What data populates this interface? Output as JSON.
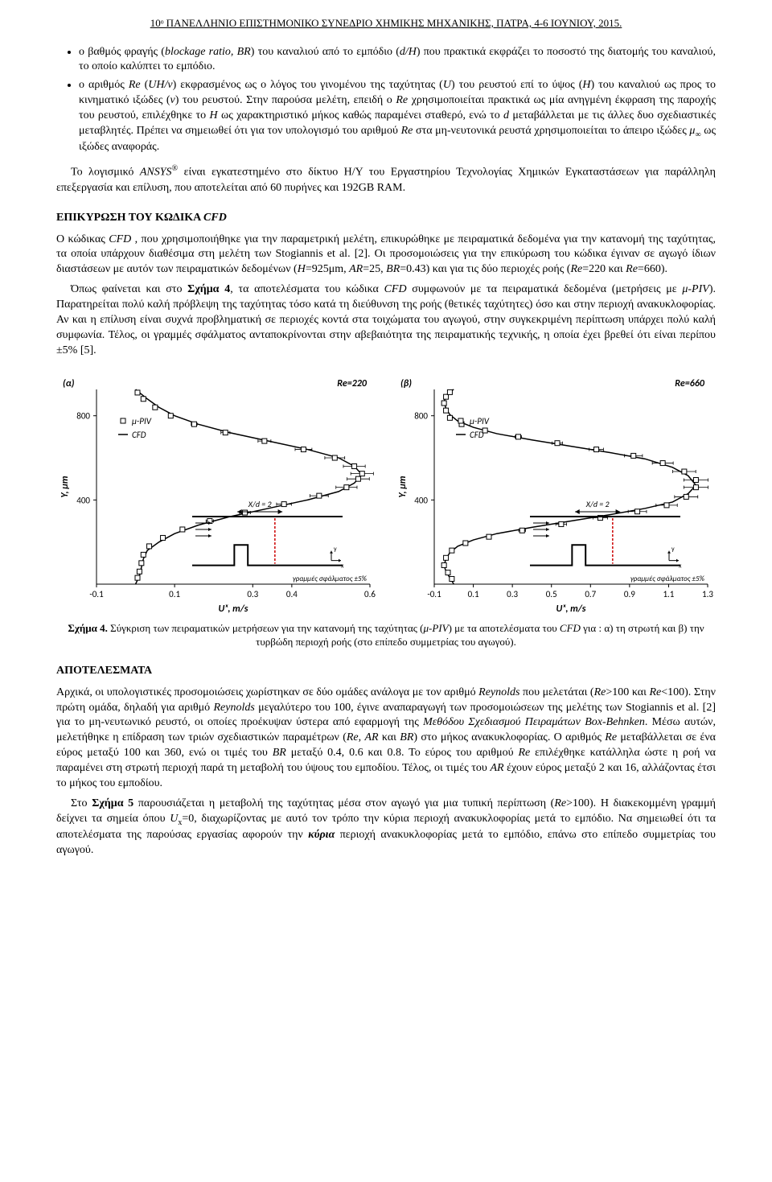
{
  "header": "10ᵒ ΠΑΝΕΛΛΗΝΙΟ ΕΠΙΣΤΗΜΟΝΙΚΟ ΣΥΝΕΔΡΙΟ ΧΗΜΙΚΗΣ ΜΗΧΑΝΙΚΗΣ, ΠΑΤΡΑ, 4-6 ΙΟΥΝΙΟΥ, 2015.",
  "bullet1_prefix": "ο βαθμός φραγής (",
  "bullet1_ital1": "blockage ratio, BR",
  "bullet1_mid1": ") του καναλιού από το εμπόδιο (",
  "bullet1_ital2": "d/H",
  "bullet1_suffix": ") που πρακτικά εκφράζει το ποσοστό της διατομής του καναλιού, το οποίο καλύπτει το εμπόδιο.",
  "bullet2_prefix": "ο αριθμός ",
  "bullet2_ital1": "Re",
  "bullet2_mid1": " (",
  "bullet2_ital2": "UH/ν",
  "bullet2_mid2": ") εκφρασμένος ως ο λόγος του γινομένου της ταχύτητας (",
  "bullet2_ital3": "U",
  "bullet2_mid3": ") του ρευστού επί το ύψος (",
  "bullet2_ital4": "H",
  "bullet2_mid4": ") του καναλιού ως προς το κινηματικό ιξώδες (",
  "bullet2_ital5": "ν",
  "bullet2_mid5": ") του ρευστού. Στην παρούσα μελέτη, επειδή ο ",
  "bullet2_ital6": "Re",
  "bullet2_mid6": " χρησιμοποιείται πρακτικά ως μία ανηγμένη έκφραση της παροχής του ρευστού, επιλέχθηκε το ",
  "bullet2_ital7": "H",
  "bullet2_mid7": " ως χαρακτηριστικό μήκος καθώς παραμένει σταθερό, ενώ το ",
  "bullet2_ital8": "d",
  "bullet2_mid8": " μεταβάλλεται με τις άλλες δυο σχεδιαστικές μεταβλητές. Πρέπει να σημειωθεί ότι για τον υπολογισμό του αριθμού ",
  "bullet2_ital9": "Re",
  "bullet2_mid9": " στα μη-νευτονικά ρευστά χρησιμοποιείται το άπειρο ιξώδες ",
  "bullet2_ital10": "μ",
  "bullet2_sub1": "∞",
  "bullet2_suffix": " ως ιξώδες αναφοράς.",
  "para2_prefix": "Το λογισμικό ",
  "para2_ital1": "ANSYS",
  "para2_reg": "®",
  "para2_suffix": " είναι εγκατεστημένο στο δίκτυο Η/Υ του Εργαστηρίου Τεχνολογίας Χημικών Εγκαταστάσεων για παράλληλη επεξεργασία και επίλυση, που αποτελείται από 60 πυρήνες και 192GB RAM.",
  "section1_title_a": "ΕΠΙΚΥΡΩΣΗ ΤΟΥ ΚΩΔΙΚΑ ",
  "section1_title_b": "CFD",
  "para3_a": "Ο κώδικας ",
  "para3_i1": "CFD ",
  "para3_b": ", που χρησιμοποιήθηκε για την παραμετρική μελέτη, επικυρώθηκε με πειραματικά δεδομένα για την κατανομή της ταχύτητας, τα οποία υπάρχουν διαθέσιμα στη μελέτη των Stogiannis et al. [2]. Οι προσομοιώσεις για την επικύρωση του κώδικα έγιναν σε αγωγό ίδιων διαστάσεων με αυτόν των πειραματικών δεδομένων (",
  "para3_i2": "H",
  "para3_c": "=925μm, ",
  "para3_i3": "AR",
  "para3_d": "=25, ",
  "para3_i4": "BR",
  "para3_e": "=0.43) και για τις δύο περιοχές ροής (",
  "para3_i5": "Re",
  "para3_f": "=220 και ",
  "para3_i6": "Re",
  "para3_g": "=660).",
  "para4_a": "Όπως φαίνεται και στο ",
  "para4_b": "Σχήμα 4",
  "para4_c": ", τα αποτελέσματα του κώδικα ",
  "para4_i1": "CFD",
  "para4_d": " συμφωνούν με τα πειραματικά δεδομένα (μετρήσεις με ",
  "para4_i2": "μ-PIV",
  "para4_e": "). Παρατηρείται πολύ καλή πρόβλεψη της ταχύτητας τόσο κατά τη διεύθυνση της ροής (θετικές ταχύτητες) όσο και στην περιοχή ανακυκλοφορίας. Αν και η επίλυση είναι συχνά προβληματική σε περιοχές κοντά στα τοιχώματα του αγωγού, στην συγκεκριμένη περίπτωση υπάρχει πολύ καλή συμφωνία. Τέλος, οι γραμμές σφάλματος ανταποκρίνονται στην αβεβαιότητα της πειραματικής τεχνικής, η οποία έχει βρεθεί ότι είναι περίπου ±5% [5].",
  "fig4_caption_a": "Σχήμα 4.",
  "fig4_caption_b": " Σύγκριση των πειραματικών μετρήσεων για την κατανομή της ταχύτητας (",
  "fig4_caption_i1": "μ-PIV",
  "fig4_caption_c": ") με τα αποτελέσματα του ",
  "fig4_caption_i2": "CFD",
  "fig4_caption_d": " για : α) τη στρωτή και β) την τυρβώδη περιοχή ροής (στο επίπεδο συμμετρίας του αγωγού).",
  "section2_title": "ΑΠΟΤΕΛΕΣΜΑΤΑ",
  "para5_a": "Αρχικά, οι υπολογιστικές προσομοιώσεις χωρίστηκαν σε δύο ομάδες ανάλογα με τον αριθμό ",
  "para5_i1": "Reynolds",
  "para5_b": " που μελετάται (",
  "para5_i2": "Re",
  "para5_c": ">100 και ",
  "para5_i3": "Re",
  "para5_d": "<100). Στην πρώτη ομάδα, δηλαδή για αριθμό ",
  "para5_i4": "Reynolds",
  "para5_e": " μεγαλύτερο του 100, έγινε αναπαραγωγή των προσομοιώσεων της μελέτης των Stogiannis et al. [2] για το μη-νευτωνικό ρευστό, οι οποίες προέκυψαν ύστερα από εφαρμογή της ",
  "para5_i5": "Μεθόδου Σχεδιασμού Πειραμάτων Box-Behnken",
  "para5_f": ". Μέσω αυτών, μελετήθηκε η επίδραση των τριών σχεδιαστικών παραμέτρων (",
  "para5_i6": "Re",
  "para5_g": ", ",
  "para5_i7": "AR",
  "para5_h": " και ",
  "para5_i8": "BR",
  "para5_i": ") στο μήκος ανακυκλοφορίας. Ο αριθμός ",
  "para5_i9": "Re",
  "para5_j": " μεταβάλλεται σε ένα εύρος μεταξύ 100 και 360, ενώ οι τιμές του ",
  "para5_i10": "BR",
  "para5_k": " μεταξύ 0.4, 0.6 και 0.8. Το εύρος του αριθμού ",
  "para5_i11": "Re",
  "para5_l": " επιλέχθηκε κατάλληλα ώστε η ροή να παραμένει στη στρωτή περιοχή παρά τη μεταβολή του ύψους του εμποδίου. Τέλος, οι τιμές του ",
  "para5_i12": "AR",
  "para5_m": " έχουν εύρος μεταξύ 2 και 16, αλλάζοντας έτσι το μήκος του εμποδίου.",
  "para6_a": "Στο ",
  "para6_b": "Σχήμα 5",
  "para6_c": " παρουσιάζεται η μεταβολή της ταχύτητας μέσα στον αγωγό για μια τυπική περίπτωση (",
  "para6_i1": "Re",
  "para6_d": ">100). Η διακεκομμένη γραμμή δείχνει τα σημεία όπου ",
  "para6_i2": "U",
  "para6_sub1": "x",
  "para6_e": "=0, διαχωρίζοντας με αυτό τον τρόπο την κύρια περιοχή ανακυκλοφορίας μετά το εμπόδιο. Να σημειωθεί ότι τα αποτελέσματα της παρούσας εργασίας αφορούν την ",
  "para6_b2": "κύρια",
  "para6_f": " περιοχή ανακυκλοφορίας μετά το εμπόδιο, επάνω στο επίπεδο συμμετρίας του αγωγού.",
  "chartA": {
    "type": "line+scatter",
    "panel_label": "(α)",
    "title": "Re=220",
    "xlabel": "Uₓ, m/s",
    "ylabel": "Y, μm",
    "xlim": [
      -0.1,
      0.6
    ],
    "ylim": [
      0,
      925
    ],
    "xticks": [
      -0.1,
      0.1,
      0.3,
      0.4,
      0.6
    ],
    "yticks": [
      400,
      800
    ],
    "legend_piv": "μ-PIV",
    "legend_cfd": "CFD",
    "legend_marker": "square",
    "inset_label": "X/d = 2",
    "errorbar_label": "γραμμές σφάλματος ±5%",
    "line_color": "#000000",
    "marker_color": "#ffffff",
    "marker_stroke": "#000000",
    "background": "#ffffff",
    "font_family": "Calibri, Arial, sans-serif",
    "cfd_curve": [
      [
        0,
        0
      ],
      [
        0.01,
        40
      ],
      [
        0.015,
        80
      ],
      [
        0.02,
        120
      ],
      [
        0.03,
        160
      ],
      [
        0.06,
        200
      ],
      [
        0.1,
        240
      ],
      [
        0.16,
        280
      ],
      [
        0.24,
        320
      ],
      [
        0.34,
        360
      ],
      [
        0.44,
        400
      ],
      [
        0.52,
        440
      ],
      [
        0.56,
        480
      ],
      [
        0.58,
        520
      ],
      [
        0.56,
        560
      ],
      [
        0.52,
        600
      ],
      [
        0.44,
        640
      ],
      [
        0.34,
        680
      ],
      [
        0.24,
        720
      ],
      [
        0.16,
        760
      ],
      [
        0.1,
        800
      ],
      [
        0.06,
        840
      ],
      [
        0.03,
        880
      ],
      [
        0.01,
        910
      ],
      [
        0,
        925
      ]
    ],
    "piv_points": [
      [
        0.005,
        30
      ],
      [
        0.01,
        60
      ],
      [
        0.015,
        100
      ],
      [
        0.02,
        140
      ],
      [
        0.035,
        180
      ],
      [
        0.07,
        220
      ],
      [
        0.12,
        260
      ],
      [
        0.19,
        300
      ],
      [
        0.28,
        340
      ],
      [
        0.38,
        380
      ],
      [
        0.47,
        420
      ],
      [
        0.54,
        460
      ],
      [
        0.57,
        500
      ],
      [
        0.58,
        525
      ],
      [
        0.56,
        560
      ],
      [
        0.51,
        600
      ],
      [
        0.43,
        640
      ],
      [
        0.33,
        680
      ],
      [
        0.23,
        720
      ],
      [
        0.15,
        760
      ],
      [
        0.09,
        800
      ],
      [
        0.05,
        840
      ],
      [
        0.02,
        880
      ],
      [
        0.005,
        910
      ]
    ],
    "error_pct": 5
  },
  "chartB": {
    "type": "line+scatter",
    "panel_label": "(β)",
    "title": "Re=660",
    "xlabel": "Uₓ, m/s",
    "ylabel": "Y, μm",
    "xlim": [
      -0.1,
      1.3
    ],
    "ylim": [
      0,
      925
    ],
    "xticks": [
      -0.1,
      0.1,
      0.3,
      0.5,
      0.7,
      0.9,
      1.1,
      1.3
    ],
    "yticks": [
      400,
      800
    ],
    "legend_piv": "μ-PIV",
    "legend_cfd": "CFD",
    "legend_marker": "square",
    "inset_label": "X/d = 2",
    "errorbar_label": "γραμμές σφάλματος ±5%",
    "line_color": "#000000",
    "marker_color": "#ffffff",
    "marker_stroke": "#000000",
    "background": "#ffffff",
    "font_family": "Calibri, Arial, sans-serif",
    "cfd_curve": [
      [
        0,
        0
      ],
      [
        -0.02,
        30
      ],
      [
        -0.04,
        60
      ],
      [
        -0.05,
        90
      ],
      [
        -0.04,
        120
      ],
      [
        -0.02,
        150
      ],
      [
        0.02,
        180
      ],
      [
        0.1,
        210
      ],
      [
        0.22,
        240
      ],
      [
        0.4,
        270
      ],
      [
        0.6,
        300
      ],
      [
        0.8,
        330
      ],
      [
        0.98,
        360
      ],
      [
        1.12,
        390
      ],
      [
        1.2,
        430
      ],
      [
        1.24,
        470
      ],
      [
        1.2,
        515
      ],
      [
        1.12,
        555
      ],
      [
        0.98,
        595
      ],
      [
        0.8,
        625
      ],
      [
        0.6,
        655
      ],
      [
        0.4,
        685
      ],
      [
        0.22,
        715
      ],
      [
        0.1,
        745
      ],
      [
        0.02,
        775
      ],
      [
        -0.02,
        805
      ],
      [
        -0.04,
        835
      ],
      [
        -0.05,
        865
      ],
      [
        -0.04,
        895
      ],
      [
        -0.02,
        915
      ],
      [
        0,
        925
      ]
    ],
    "piv_points": [
      [
        -0.01,
        25
      ],
      [
        -0.03,
        55
      ],
      [
        -0.05,
        90
      ],
      [
        -0.04,
        125
      ],
      [
        -0.01,
        160
      ],
      [
        0.06,
        195
      ],
      [
        0.18,
        225
      ],
      [
        0.35,
        255
      ],
      [
        0.55,
        285
      ],
      [
        0.75,
        315
      ],
      [
        0.94,
        345
      ],
      [
        1.09,
        375
      ],
      [
        1.19,
        415
      ],
      [
        1.24,
        460
      ],
      [
        1.24,
        495
      ],
      [
        1.18,
        535
      ],
      [
        1.07,
        575
      ],
      [
        0.92,
        610
      ],
      [
        0.73,
        640
      ],
      [
        0.53,
        670
      ],
      [
        0.33,
        700
      ],
      [
        0.16,
        730
      ],
      [
        0.04,
        760
      ],
      [
        -0.02,
        790
      ],
      [
        -0.04,
        825
      ],
      [
        -0.05,
        860
      ],
      [
        -0.04,
        890
      ],
      [
        -0.02,
        912
      ]
    ],
    "error_pct": 5
  }
}
